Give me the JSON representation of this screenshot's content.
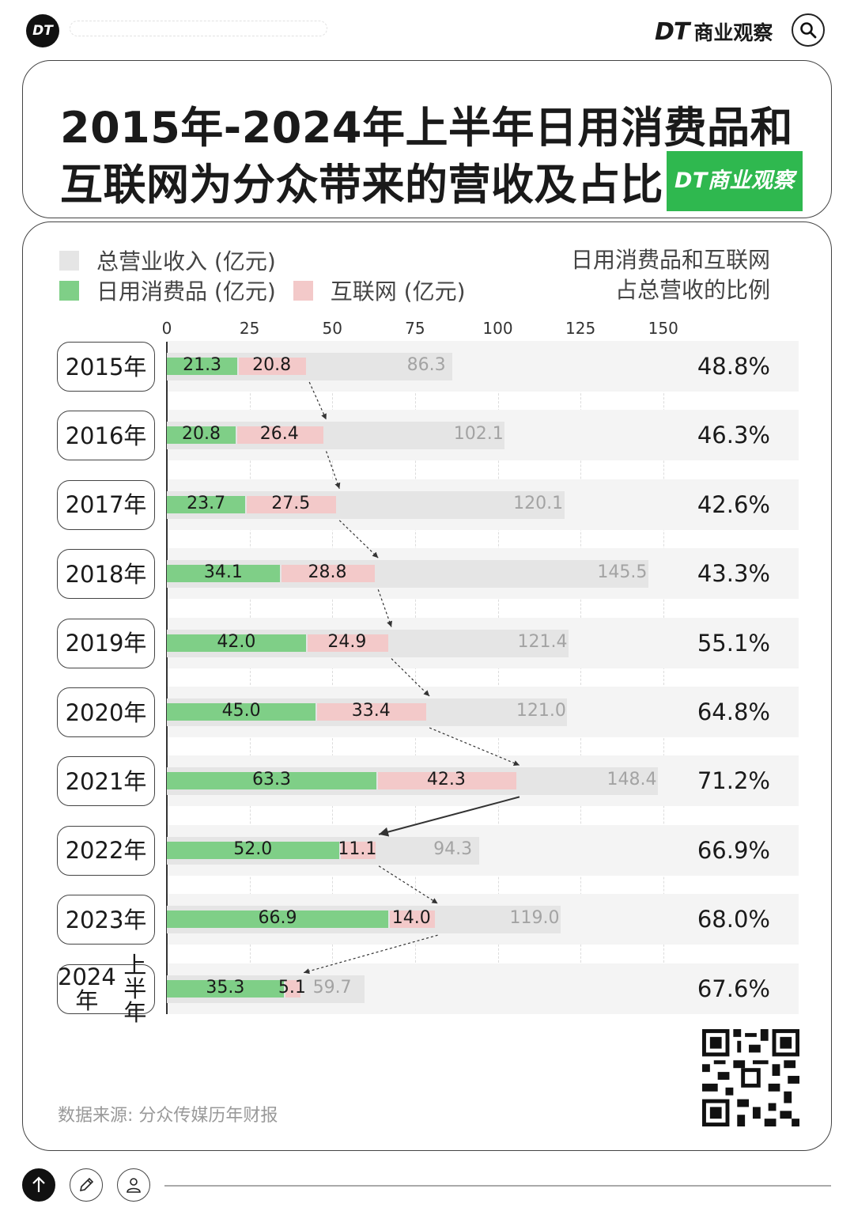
{
  "header": {
    "logo_text": "DT",
    "brand_mark": "DT",
    "brand_name": "商业观察",
    "search_icon": "search-icon"
  },
  "title_line1": "2015年-2024年上半年日用消费品和",
  "title_line2": "互联网为分众带来的营收及占比",
  "title_badge": "DT商业观察",
  "legend": {
    "total": "总营业收入 (亿元)",
    "daily": "日用消费品 (亿元)",
    "internet": "互联网 (亿元)",
    "ratio_line1": "日用消费品和互联网",
    "ratio_line2": "占总营收的比例"
  },
  "colors": {
    "total": "#e5e5e5",
    "daily": "#7fcf87",
    "internet": "#f3c9c9",
    "badge": "#2fb84f"
  },
  "chart_data": {
    "type": "bar",
    "orientation": "horizontal",
    "categories": [
      "2015年",
      "2016年",
      "2017年",
      "2018年",
      "2019年",
      "2020年",
      "2021年",
      "2022年",
      "2023年",
      "2024年上半年"
    ],
    "category_lines": [
      [
        "2015年"
      ],
      [
        "2016年"
      ],
      [
        "2017年"
      ],
      [
        "2018年"
      ],
      [
        "2019年"
      ],
      [
        "2020年"
      ],
      [
        "2021年"
      ],
      [
        "2022年"
      ],
      [
        "2023年"
      ],
      [
        "2024年",
        "上半年"
      ]
    ],
    "series": [
      {
        "name": "总营业收入 (亿元)",
        "values": [
          86.3,
          102.1,
          120.1,
          145.5,
          121.4,
          121.0,
          148.4,
          94.3,
          119.0,
          59.7
        ]
      },
      {
        "name": "日用消费品 (亿元)",
        "values": [
          21.3,
          20.8,
          23.7,
          34.1,
          42.0,
          45.0,
          63.3,
          52.0,
          66.9,
          35.3
        ]
      },
      {
        "name": "互联网 (亿元)",
        "values": [
          20.8,
          26.4,
          27.5,
          28.8,
          24.9,
          33.4,
          42.3,
          11.1,
          14.0,
          5.1
        ]
      }
    ],
    "value_labels": {
      "total": [
        "86.3",
        "102.1",
        "120.1",
        "145.5",
        "121.4",
        "121.0",
        "148.4",
        "94.3",
        "119.0",
        "59.7"
      ],
      "daily": [
        "21.3",
        "20.8",
        "23.7",
        "34.1",
        "42.0",
        "45.0",
        "63.3",
        "52.0",
        "66.9",
        "35.3"
      ],
      "internet": [
        "20.8",
        "26.4",
        "27.5",
        "28.8",
        "24.9",
        "33.4",
        "42.3",
        "11.1",
        "14.0",
        "5.1"
      ]
    },
    "ratio": [
      "48.8%",
      "46.3%",
      "42.6%",
      "43.3%",
      "55.1%",
      "64.8%",
      "71.2%",
      "66.9%",
      "68.0%",
      "67.6%"
    ],
    "xticks": [
      "0",
      "25",
      "50",
      "75",
      "100",
      "125",
      "150"
    ],
    "xlim": [
      0,
      150
    ],
    "grid": true
  },
  "source": "数据来源: 分众传媒历年财报",
  "footer": {
    "up_icon": "arrow-up-icon",
    "edit_icon": "pencil-icon",
    "user_icon": "user-icon"
  }
}
